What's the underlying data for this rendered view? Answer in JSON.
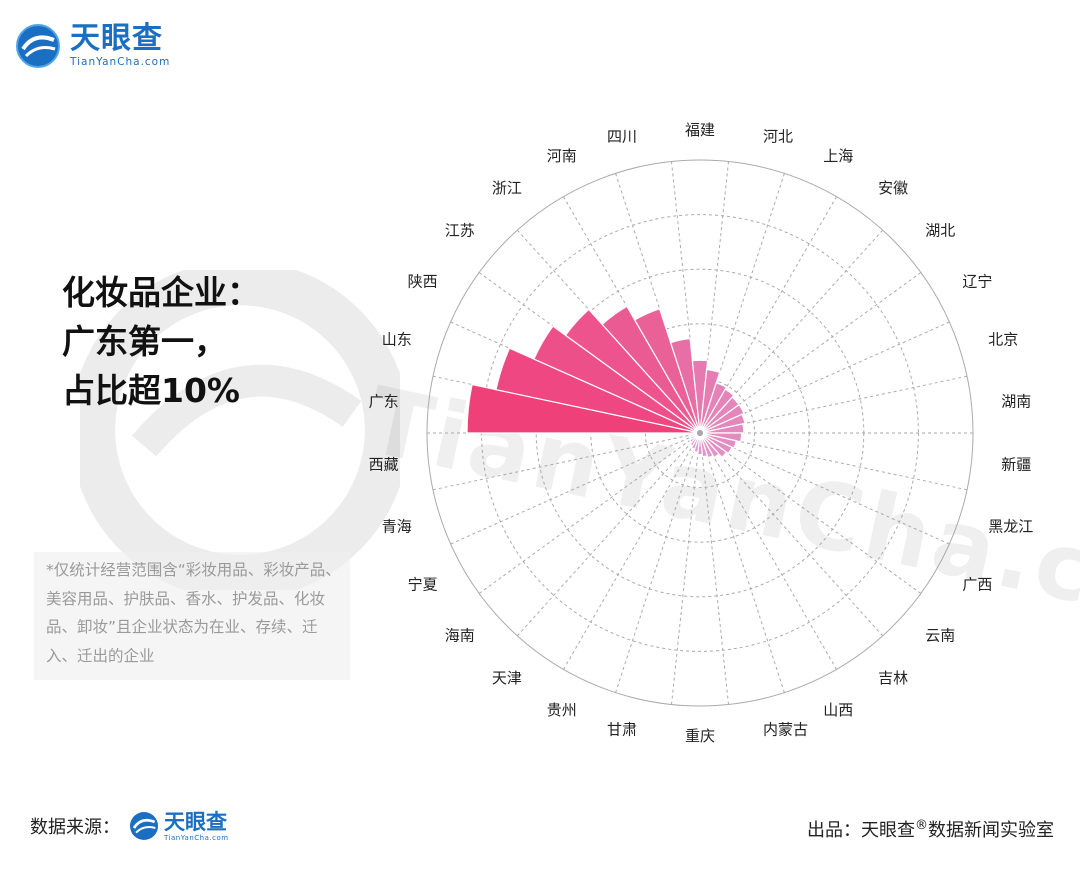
{
  "brand": {
    "name": "天眼查",
    "domain": "TianYanCha.com"
  },
  "headline": {
    "line1": "化妆品企业：",
    "line2": "广东第一，",
    "line3": "占比超10%"
  },
  "note": "*仅统计经营范围含“彩妆用品、彩妆产品、美容用品、护肤品、香水、护发品、化妆品、卸妆”且企业状态为在业、存续、迁入、迁出的企业",
  "footer": {
    "source_label": "数据来源：",
    "credit_prefix": "出品：天眼查",
    "credit_mark": "®",
    "credit_suffix": "数据新闻实验室"
  },
  "colors": {
    "high": "#f0407a",
    "low": "#dcb4e6",
    "grid": "#aaaaaa"
  },
  "chart_data": {
    "type": "polar-bar",
    "title": "",
    "categories": [
      "广东",
      "山东",
      "陕西",
      "江苏",
      "浙江",
      "河南",
      "四川",
      "福建",
      "河北",
      "上海",
      "安徽",
      "湖北",
      "辽宁",
      "北京",
      "湖南",
      "新疆",
      "黑龙江",
      "广西",
      "云南",
      "吉林",
      "山西",
      "内蒙古",
      "重庆",
      "甘肃",
      "贵州",
      "天津",
      "海南",
      "宁夏",
      "青海",
      "西藏"
    ],
    "values": [
      10.2,
      9.1,
      7.9,
      7.2,
      6.3,
      5.6,
      4.0,
      3.0,
      2.6,
      2.1,
      2.0,
      1.9,
      1.9,
      1.8,
      1.7,
      1.6,
      1.4,
      1.3,
      1.2,
      1.0,
      0.9,
      0.8,
      0.7,
      0.6,
      0.5,
      0.4,
      0.3,
      0.2,
      0.15,
      0.1
    ],
    "grid": true
  }
}
